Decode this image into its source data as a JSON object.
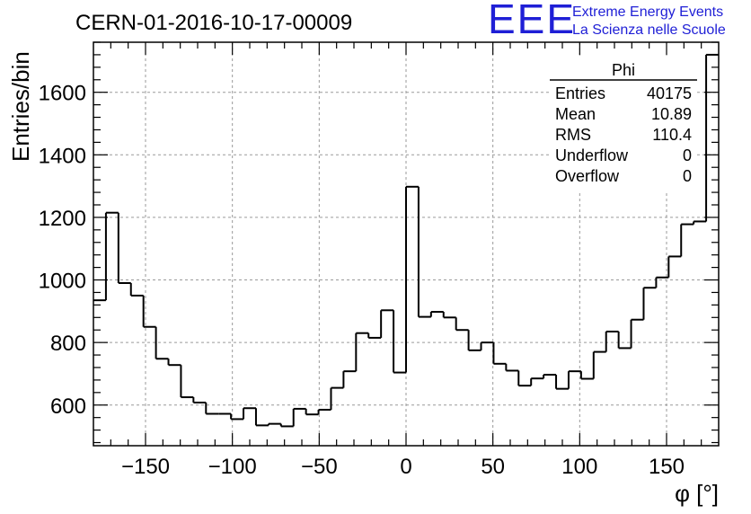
{
  "chart_data": {
    "type": "histogram",
    "title": "CERN-01-2016-10-17-00009",
    "xlabel": "φ [°]",
    "ylabel": "Entries/bin",
    "xlim": [
      -180,
      180
    ],
    "ylim": [
      470,
      1760
    ],
    "bin_width": 7.2,
    "grid": true,
    "xticks": [
      -150,
      -100,
      -50,
      0,
      50,
      100,
      150
    ],
    "yticks": [
      600,
      800,
      1000,
      1200,
      1400,
      1600
    ],
    "xtick_labels": [
      "−150",
      "−100",
      "−50",
      "0",
      "50",
      "100",
      "150"
    ],
    "ytick_labels": [
      "600",
      "800",
      "1000",
      "1200",
      "1400",
      "1600"
    ],
    "values": [
      935,
      1215,
      990,
      950,
      850,
      748,
      728,
      625,
      608,
      572,
      572,
      555,
      590,
      535,
      540,
      532,
      588,
      570,
      585,
      655,
      708,
      830,
      815,
      903,
      704,
      1298,
      882,
      898,
      880,
      840,
      775,
      800,
      732,
      710,
      662,
      685,
      697,
      652,
      708,
      684,
      770,
      835,
      782,
      873,
      975,
      1008,
      1075,
      1178,
      1187,
      1720
    ],
    "stats": {
      "name": "Phi",
      "rows": [
        {
          "label": "Entries",
          "value": "40175"
        },
        {
          "label": "Mean",
          "value": "10.89"
        },
        {
          "label": "RMS",
          "value": "110.4"
        },
        {
          "label": "Underflow",
          "value": "0"
        },
        {
          "label": "Overflow",
          "value": "0"
        }
      ]
    },
    "line_color": "#000000",
    "grid_color": "#9a9a9a"
  },
  "logo": {
    "mark": "EEE",
    "line1": "Extreme Energy Events",
    "line2": "La Scienza nelle Scuole",
    "color": "#1f1fd6"
  }
}
